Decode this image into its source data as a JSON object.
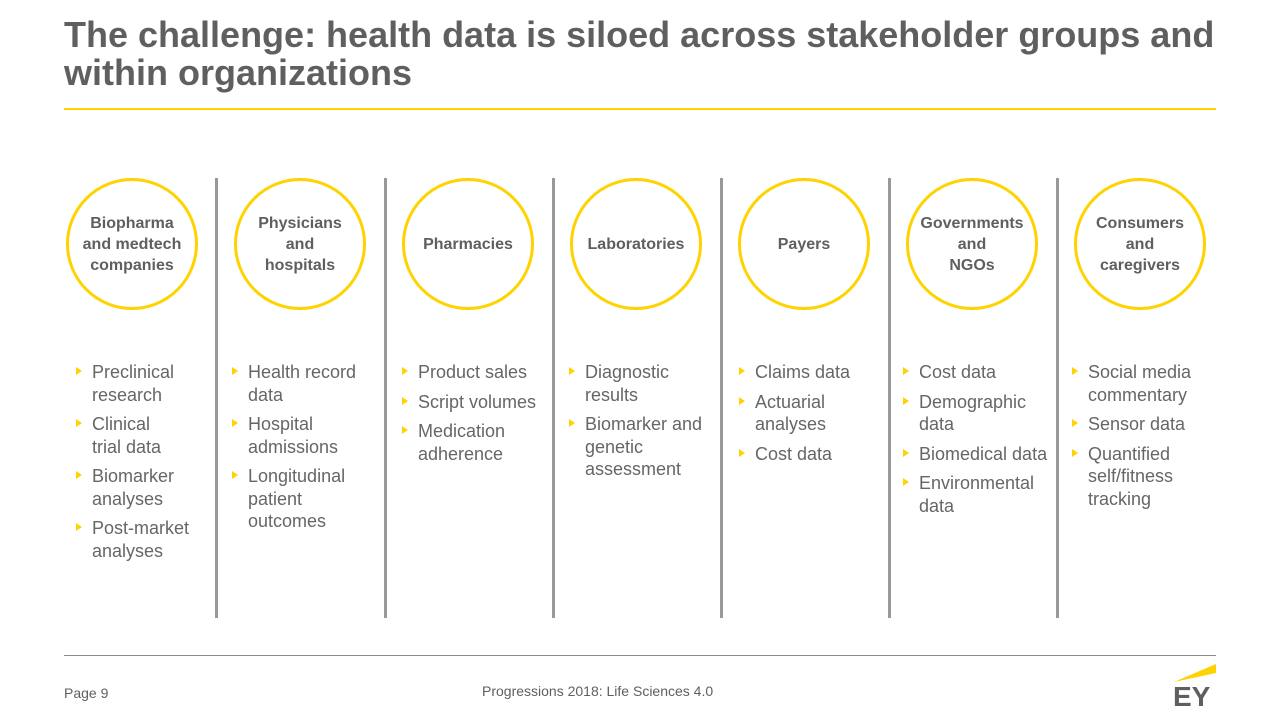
{
  "title": "The challenge: health data is siloed across stakeholder groups and within organizations",
  "colors": {
    "accent": "#ffd200",
    "separator": "#999999",
    "text": "#666666"
  },
  "columns": [
    {
      "heading": "Biopharma\nand medtech\ncompanies",
      "items": [
        "Preclinical research",
        "Clinical\ntrial data",
        "Biomarker analyses",
        "Post-market analyses"
      ]
    },
    {
      "heading": "Physicians\nand\nhospitals",
      "items": [
        "Health record data",
        "Hospital admissions",
        "Longitudinal patient outcomes"
      ]
    },
    {
      "heading": "Pharmacies",
      "items": [
        "Product sales",
        "Script volumes",
        "Medication adherence"
      ]
    },
    {
      "heading": "Laboratories",
      "items": [
        "Diagnostic results",
        "Biomarker and genetic assessment"
      ]
    },
    {
      "heading": "Payers",
      "items": [
        "Claims data",
        "Actuarial analyses",
        "Cost data"
      ]
    },
    {
      "heading": "Governments\nand\nNGOs",
      "items": [
        "Cost data",
        "Demographic data",
        "Biomedical data",
        "Environmental data"
      ]
    },
    {
      "heading": "Consumers\nand\ncaregivers",
      "items": [
        "Social media commentary",
        "Sensor data",
        "Quantified self/fitness tracking"
      ]
    }
  ],
  "footer": {
    "page": "Page 9",
    "publication": "Progressions 2018: Life Sciences 4.0",
    "logo_text": "EY"
  }
}
